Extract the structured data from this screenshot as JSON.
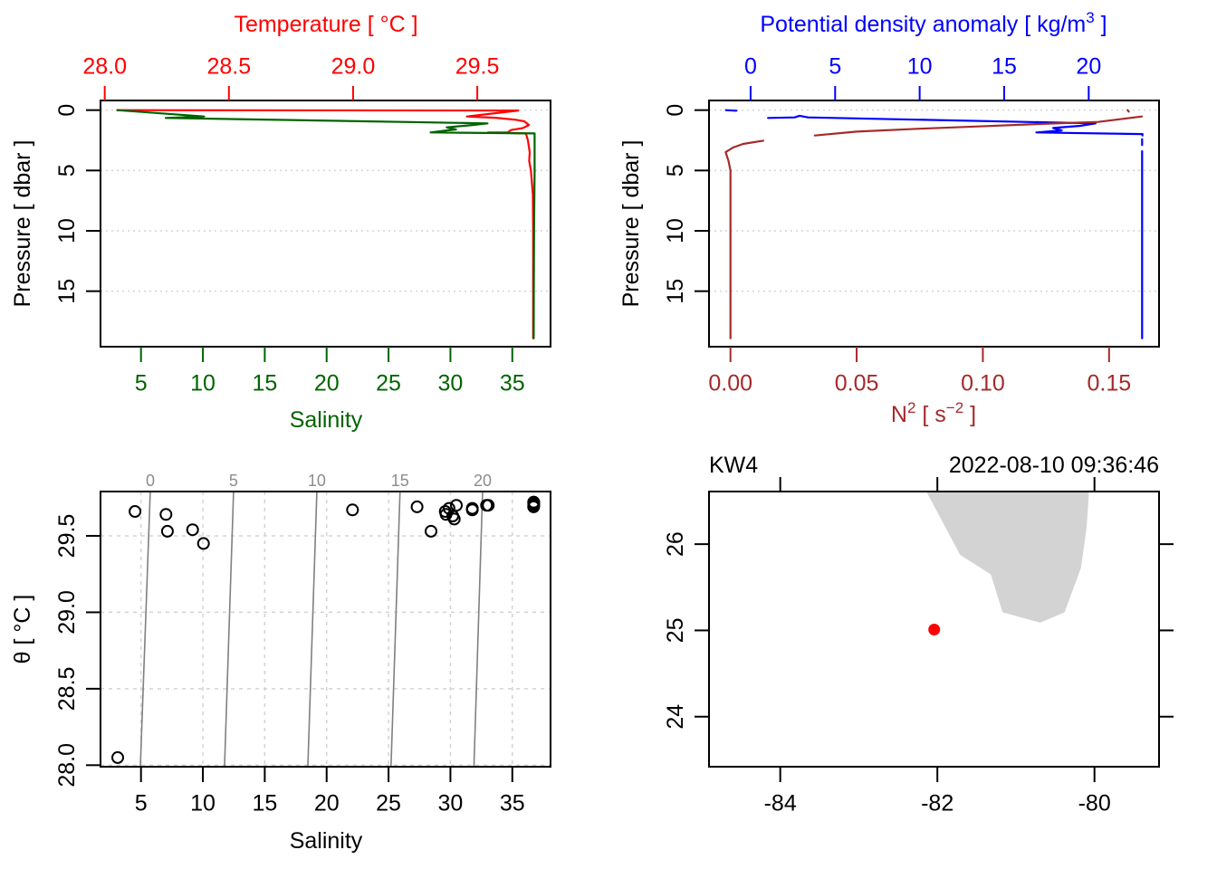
{
  "chart_data": [
    {
      "id": "temperature-salinity-profile",
      "type": "line",
      "title": "",
      "y_axis": {
        "label": "Pressure [ dbar ]",
        "range": [
          -0.8,
          19.6
        ],
        "reversed": true,
        "ticks": [
          0,
          5,
          10,
          15
        ],
        "tick_labels": [
          "0",
          "5",
          "10",
          "15"
        ],
        "color": "#000000"
      },
      "x_axis_top": {
        "label": "Temperature [ °C ]",
        "color": "#FF0000",
        "range": [
          27.983,
          29.795
        ],
        "ticks": [
          28.0,
          28.5,
          29.0,
          29.5
        ],
        "tick_labels": [
          "28.0",
          "28.5",
          "29.0",
          "29.5"
        ]
      },
      "x_axis_bottom": {
        "label": "Salinity",
        "color": "#006400",
        "range": [
          1.73,
          38.09
        ],
        "ticks": [
          5,
          10,
          15,
          20,
          25,
          30,
          35
        ],
        "tick_labels": [
          "5",
          "10",
          "15",
          "20",
          "25",
          "30",
          "35"
        ]
      },
      "grid": {
        "horizontal": true,
        "vertical": false,
        "style": "dotted",
        "color": "#D3D3D3"
      },
      "series": [
        {
          "name": "Temperature",
          "axis": "top",
          "color": "#FF0000",
          "points": [
            [
              28.05,
              0.0
            ],
            [
              29.665,
              0.03
            ],
            [
              29.458,
              0.53
            ],
            [
              29.574,
              0.63
            ],
            [
              29.655,
              0.8
            ],
            [
              29.69,
              0.93
            ],
            [
              29.708,
              1.23
            ],
            [
              29.684,
              1.48
            ],
            [
              29.635,
              1.65
            ],
            [
              29.623,
              1.85
            ],
            [
              29.543,
              1.85
            ],
            [
              29.696,
              1.93
            ],
            [
              29.704,
              2.5
            ],
            [
              29.711,
              3.5
            ],
            [
              29.709,
              4.2
            ],
            [
              29.716,
              5.0
            ],
            [
              29.724,
              7.0
            ],
            [
              29.725,
              10.0
            ],
            [
              29.725,
              15.0
            ],
            [
              29.725,
              18.9
            ]
          ]
        },
        {
          "name": "Salinity",
          "axis": "bottom",
          "color": "#006400",
          "points": [
            [
              3.1,
              0.0
            ],
            [
              10.1,
              0.53
            ],
            [
              7.0,
              0.65
            ],
            [
              33.0,
              1.1
            ],
            [
              31.8,
              1.23
            ],
            [
              29.7,
              1.43
            ],
            [
              30.45,
              1.6
            ],
            [
              29.7,
              1.68
            ],
            [
              28.4,
              1.85
            ],
            [
              36.8,
              1.93
            ],
            [
              36.8,
              5.0
            ],
            [
              36.76,
              10.0
            ],
            [
              36.74,
              15.0
            ],
            [
              36.73,
              18.9
            ]
          ]
        }
      ]
    },
    {
      "id": "density-n2-profile",
      "type": "line",
      "title": "",
      "y_axis": {
        "label": "Pressure [ dbar ]",
        "range": [
          -0.8,
          19.6
        ],
        "reversed": true,
        "ticks": [
          0,
          5,
          10,
          15
        ],
        "tick_labels": [
          "0",
          "5",
          "10",
          "15"
        ],
        "color": "#000000"
      },
      "x_axis_top": {
        "label_parts": [
          "Potential density anomaly [ kg/m",
          "3",
          " ]"
        ],
        "color": "#0000FF",
        "range": [
          -2.46,
          24.16
        ],
        "ticks": [
          0,
          5,
          10,
          15,
          20
        ],
        "tick_labels": [
          "0",
          "5",
          "10",
          "15",
          "20"
        ]
      },
      "x_axis_bottom": {
        "label_parts": [
          "N",
          "2",
          " [ s",
          "−2",
          " ]"
        ],
        "color": "#A52A2A",
        "range": [
          -0.0085,
          0.1698
        ],
        "ticks": [
          0.0,
          0.05,
          0.1,
          0.15
        ],
        "tick_labels": [
          "0.00",
          "0.05",
          "0.10",
          "0.15"
        ]
      },
      "grid": {
        "horizontal": true,
        "vertical": false,
        "style": "dotted",
        "color": "#D3D3D3"
      },
      "series": [
        {
          "name": "Density",
          "axis": "top",
          "color": "#0000FF",
          "points": [
            [
              -1.46,
              0.0
            ],
            [
              -0.84,
              0.05
            ],
            null,
            [
              1.03,
              0.65
            ],
            [
              2.6,
              0.6
            ],
            [
              2.9,
              0.47
            ],
            [
              3.4,
              0.6
            ],
            [
              20.4,
              1.1
            ],
            [
              19.5,
              1.3
            ],
            [
              17.9,
              1.48
            ],
            [
              18.4,
              1.68
            ],
            [
              16.9,
              1.85
            ],
            [
              23.18,
              1.98
            ],
            [
              23.18,
              2.1
            ],
            null,
            [
              23.16,
              2.4
            ],
            [
              23.16,
              2.9
            ],
            null,
            [
              23.16,
              3.4
            ],
            [
              23.16,
              18.9
            ]
          ]
        },
        {
          "name": "N2",
          "axis": "bottom",
          "color": "#A52A2A",
          "points": [
            [
              0.1573,
              0.0
            ],
            [
              0.1578,
              0.12
            ],
            null,
            [
              0.163,
              0.53
            ],
            [
              0.1457,
              0.98
            ],
            [
              0.122,
              1.15
            ],
            [
              0.098,
              1.35
            ],
            [
              0.074,
              1.55
            ],
            [
              0.05,
              1.78
            ],
            [
              0.0334,
              2.1
            ],
            null,
            [
              0.013,
              2.53
            ],
            [
              0.005,
              2.8
            ],
            [
              0.001,
              3.1
            ],
            [
              -0.0019,
              3.48
            ],
            [
              -0.0008,
              4.2
            ],
            [
              0.0,
              5.0
            ],
            [
              0.0,
              18.9
            ]
          ]
        }
      ]
    },
    {
      "id": "ts-diagram",
      "type": "scatter",
      "title": "",
      "x_axis": {
        "label": "Salinity",
        "color": "#000000",
        "range": [
          1.73,
          38.09
        ],
        "ticks": [
          5,
          10,
          15,
          20,
          25,
          30,
          35
        ],
        "tick_labels": [
          "5",
          "10",
          "15",
          "20",
          "25",
          "30",
          "35"
        ]
      },
      "y_axis": {
        "label": "θ [ °C ]",
        "color": "#000000",
        "range": [
          27.99,
          29.79
        ],
        "ticks": [
          28.0,
          28.5,
          29.0,
          29.5
        ],
        "tick_labels": [
          "28.0",
          "28.5",
          "29.0",
          "29.5"
        ]
      },
      "grid": {
        "horizontal": true,
        "vertical": true,
        "style": "dashed",
        "color": "#D3D3D3"
      },
      "marker": "open-circle",
      "marker_color": "#000000",
      "points": [
        [
          3.12,
          28.05
        ],
        [
          4.52,
          29.66
        ],
        [
          7.02,
          29.64
        ],
        [
          7.14,
          29.53
        ],
        [
          9.17,
          29.54
        ],
        [
          10.05,
          29.45
        ],
        [
          22.09,
          29.67
        ],
        [
          27.31,
          29.69
        ],
        [
          28.43,
          29.53
        ],
        [
          29.58,
          29.66
        ],
        [
          29.65,
          29.64
        ],
        [
          29.89,
          29.68
        ],
        [
          30.19,
          29.63
        ],
        [
          30.31,
          29.61
        ],
        [
          30.48,
          29.7
        ],
        [
          31.77,
          29.67
        ],
        [
          31.77,
          29.68
        ],
        [
          32.92,
          29.7
        ],
        [
          33.06,
          29.7
        ],
        [
          36.72,
          29.69
        ],
        [
          36.73,
          29.7
        ],
        [
          36.73,
          29.71
        ],
        [
          36.74,
          29.72
        ],
        [
          36.72,
          29.72
        ],
        [
          36.74,
          29.7
        ]
      ],
      "isopycnal_color": "#808080",
      "isopycnal_label_color": "#8C8C8C",
      "isopycnals": [
        {
          "sigma": 0,
          "label": "0",
          "line": [
            [
              4.95,
              27.99
            ],
            [
              5.75,
              29.79
            ]
          ]
        },
        {
          "sigma": 5,
          "label": "5",
          "line": [
            [
              11.75,
              27.99
            ],
            [
              12.48,
              29.79
            ]
          ]
        },
        {
          "sigma": 10,
          "label": "10",
          "line": [
            [
              18.48,
              27.99
            ],
            [
              19.21,
              29.79
            ]
          ]
        },
        {
          "sigma": 15,
          "label": "15",
          "line": [
            [
              25.2,
              27.99
            ],
            [
              25.93,
              29.79
            ]
          ]
        },
        {
          "sigma": 20,
          "label": "20",
          "line": [
            [
              31.9,
              27.99
            ],
            [
              32.6,
              29.79
            ]
          ]
        }
      ]
    },
    {
      "id": "station-map",
      "type": "scatter",
      "title_left": "KW4",
      "title_right": "2022-08-10 09:36:46",
      "x_axis": {
        "label": "",
        "range": [
          -84.907,
          -79.178
        ],
        "ticks": [
          -84,
          -82,
          -80
        ],
        "tick_labels": [
          "-84",
          "-82",
          "-80"
        ]
      },
      "y_axis": {
        "label": "",
        "range": [
          23.42,
          26.61
        ],
        "ticks": [
          24,
          25,
          26
        ],
        "tick_labels": [
          "24",
          "25",
          "26"
        ]
      },
      "land_color": "#D3D3D3",
      "coastline": [
        [
          -82.14,
          26.61
        ],
        [
          -81.71,
          25.875
        ],
        [
          -81.32,
          25.65
        ],
        [
          -81.17,
          25.21
        ],
        [
          -80.69,
          25.09
        ],
        [
          -80.38,
          25.21
        ],
        [
          -80.17,
          25.73
        ],
        [
          -80.1,
          26.19
        ],
        [
          -80.07,
          26.61
        ]
      ],
      "station": {
        "name": "KW4",
        "lon": -82.04,
        "lat": 25.01,
        "color": "#FF0000"
      }
    }
  ]
}
